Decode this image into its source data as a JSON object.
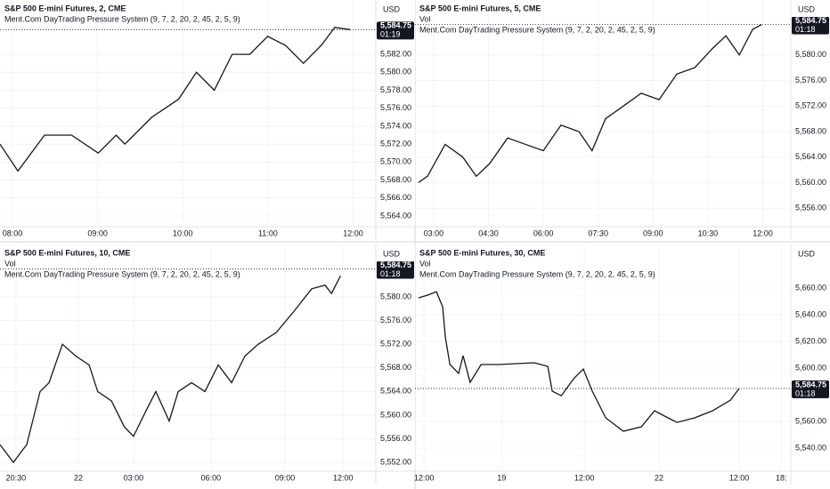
{
  "panels": [
    {
      "title": "S&P 500 E-mini Futures, 2, CME",
      "indicator": "Ment.Com DayTrading Pressure System (9, 7, 2, 20, 2, 45, 2, 5, 9)",
      "currency": "USD",
      "ylim": [
        5562.8,
        5588.05
      ],
      "xlim": [
        -4.4,
        128
      ],
      "yticks": [
        {
          "value": 5564,
          "label": "5,564.00"
        },
        {
          "value": 5566,
          "label": "5,566.00"
        },
        {
          "value": 5568,
          "label": "5,568.00"
        },
        {
          "value": 5570,
          "label": "5,570.00"
        },
        {
          "value": 5572,
          "label": "5,572.00"
        },
        {
          "value": 5574,
          "label": "5,574.00"
        },
        {
          "value": 5576,
          "label": "5,576.00"
        },
        {
          "value": 5578,
          "label": "5,578.00"
        },
        {
          "value": 5580,
          "label": "5,580.00"
        },
        {
          "value": 5582,
          "label": "5,582.00"
        }
      ],
      "xticks": [
        {
          "value": 0,
          "label": "08:00"
        },
        {
          "value": 30,
          "label": "09:00"
        },
        {
          "value": 60,
          "label": "10:00"
        },
        {
          "value": 90,
          "label": "11:00"
        },
        {
          "value": 120,
          "label": "12:00"
        }
      ],
      "last": {
        "value": 5584.75,
        "label": "5,584.75"
      },
      "countdown": "01:19",
      "x": [
        -4.4,
        1.9,
        11.3,
        20.8,
        30.2,
        36.5,
        39.6,
        49.1,
        58.5,
        64.8,
        71.1,
        77.4,
        83.6,
        89.9,
        96.2,
        102.5,
        108.8,
        113.5,
        118.9
      ],
      "values": [
        5572,
        5569,
        5573,
        5573,
        5571,
        5573,
        5572,
        5575,
        5577,
        5580,
        5578,
        5582,
        5582,
        5584,
        5583,
        5581,
        5583,
        5585,
        5584.75
      ]
    },
    {
      "title": "S&P 500 E-mini Futures, 5, CME",
      "volume": "Vol",
      "indicator": "Ment.Com DayTrading Pressure System (9, 7, 2, 20, 2, 45, 2, 5, 9)",
      "currency": "USD",
      "ylim": [
        5553.1,
        5588.6
      ],
      "xlim": [
        -6.1,
        117.2
      ],
      "yticks": [
        {
          "value": 5556,
          "label": "5,556.00"
        },
        {
          "value": 5560,
          "label": "5,560.00"
        },
        {
          "value": 5564,
          "label": "5,564.00"
        },
        {
          "value": 5568,
          "label": "5,568.00"
        },
        {
          "value": 5572,
          "label": "5,572.00"
        },
        {
          "value": 5576,
          "label": "5,576.00"
        },
        {
          "value": 5580,
          "label": "5,580.00"
        }
      ],
      "xticks": [
        {
          "value": 0,
          "label": "03:00"
        },
        {
          "value": 18,
          "label": "04:30"
        },
        {
          "value": 36,
          "label": "06:00"
        },
        {
          "value": 54,
          "label": "07:30"
        },
        {
          "value": 72,
          "label": "09:00"
        },
        {
          "value": 90,
          "label": "10:30"
        },
        {
          "value": 108,
          "label": "12:00"
        }
      ],
      "last": {
        "value": 5584.75,
        "label": "5,584.75"
      },
      "countdown": "01:18",
      "x": [
        -5,
        -2,
        3.8,
        9.6,
        14,
        18.4,
        24.3,
        30.1,
        36,
        41.8,
        47.7,
        52,
        56.4,
        62.3,
        68.1,
        74,
        79.8,
        85.7,
        91.5,
        95.9,
        100.3,
        104.7,
        107.6
      ],
      "values": [
        5560,
        5561,
        5566,
        5564,
        5561,
        5563,
        5567,
        5566,
        5565,
        5569,
        5568,
        5565,
        5570,
        5572,
        5574,
        5573,
        5577,
        5578,
        5581,
        5583,
        5580,
        5584,
        5584.75
      ]
    },
    {
      "title": "S&P 500 E-mini Futures, 10, CME",
      "volume": "Vol",
      "indicator": "Ment.Com DayTrading Pressure System (9, 7, 2, 20, 2, 45, 2, 5, 9)",
      "currency": "USD",
      "ylim": [
        5550.5,
        5588.9
      ],
      "xlim": [
        -3.7,
        83.6
      ],
      "yticks": [
        {
          "value": 5552,
          "label": "5,552.00"
        },
        {
          "value": 5556,
          "label": "5,556.00"
        },
        {
          "value": 5560,
          "label": "5,560.00"
        },
        {
          "value": 5564,
          "label": "5,564.00"
        },
        {
          "value": 5568,
          "label": "5,568.00"
        },
        {
          "value": 5572,
          "label": "5,572.00"
        },
        {
          "value": 5576,
          "label": "5,576.00"
        },
        {
          "value": 5580,
          "label": "5,580.00"
        }
      ],
      "xticks": [
        {
          "value": 0,
          "label": "20:30"
        },
        {
          "value": 14.5,
          "label": "22"
        },
        {
          "value": 27.3,
          "label": "03:00"
        },
        {
          "value": 45.3,
          "label": "06:00"
        },
        {
          "value": 62.5,
          "label": "09:00"
        },
        {
          "value": 76,
          "label": "12:00"
        }
      ],
      "last": {
        "value": 5584.75,
        "label": "5,584.75"
      },
      "countdown": "01:18",
      "x": [
        -3.7,
        -0.6,
        2.5,
        5.6,
        7.7,
        10.8,
        13.9,
        17,
        19,
        22.2,
        25.2,
        27.3,
        30.4,
        32.5,
        35.6,
        37.7,
        40.8,
        43.9,
        47,
        50.1,
        53.2,
        56.3,
        60.5,
        64.6,
        68.7,
        71.8,
        73.3,
        75.4
      ],
      "values": [
        5555,
        5552,
        5555,
        5564,
        5565.5,
        5572,
        5570,
        5568.5,
        5564,
        5562.4,
        5558,
        5556.4,
        5561,
        5564,
        5559,
        5564,
        5565.5,
        5564,
        5568.5,
        5565.5,
        5570,
        5572,
        5574,
        5577.6,
        5581.4,
        5582,
        5580.6,
        5583.6
      ]
    },
    {
      "title": "S&P 500 E-mini Futures, 30, CME",
      "volume": "Vol",
      "indicator": "Ment.Com DayTrading Pressure System (9, 7, 2, 20, 2, 45, 2, 5, 9)",
      "currency": "USD",
      "ylim": [
        5522.7,
        5692.7
      ],
      "xlim": [
        -2.8,
        114.4
      ],
      "yticks": [
        {
          "value": 5540,
          "label": "5,540.00"
        },
        {
          "value": 5560,
          "label": "5,560.00"
        },
        {
          "value": 5600,
          "label": "5,600.00"
        },
        {
          "value": 5620,
          "label": "5,620.00"
        },
        {
          "value": 5640,
          "label": "5,640.00"
        },
        {
          "value": 5660,
          "label": "5,660.00"
        }
      ],
      "xticks": [
        {
          "value": 0,
          "label": "12:00"
        },
        {
          "value": 24.2,
          "label": "19"
        },
        {
          "value": 50,
          "label": "12:00"
        },
        {
          "value": 73.3,
          "label": "22"
        },
        {
          "value": 98.3,
          "label": "12:00"
        },
        {
          "value": 111.4,
          "label": "18:"
        }
      ],
      "last": {
        "value": 5584.75,
        "label": "5,584.75"
      },
      "countdown": "01:18",
      "x": [
        -1.7,
        1.1,
        3.9,
        5.8,
        6.7,
        8.1,
        10.8,
        12.2,
        14.4,
        17.8,
        23.3,
        34.4,
        38.6,
        40,
        42.8,
        46.9,
        49.7,
        52.5,
        56.7,
        62.2,
        67.8,
        71.9,
        76.1,
        78.9,
        84.4,
        90,
        95.6,
        98.3
      ],
      "values": [
        5652.7,
        5654.7,
        5657.3,
        5646,
        5622.7,
        5602.7,
        5596,
        5609.3,
        5589.3,
        5602.7,
        5602.7,
        5604,
        5601.3,
        5582.7,
        5579.3,
        5592.7,
        5599.3,
        5582.7,
        5562.7,
        5552.7,
        5556,
        5568,
        5562.7,
        5559.3,
        5562.7,
        5568,
        5576,
        5584.75
      ]
    }
  ]
}
